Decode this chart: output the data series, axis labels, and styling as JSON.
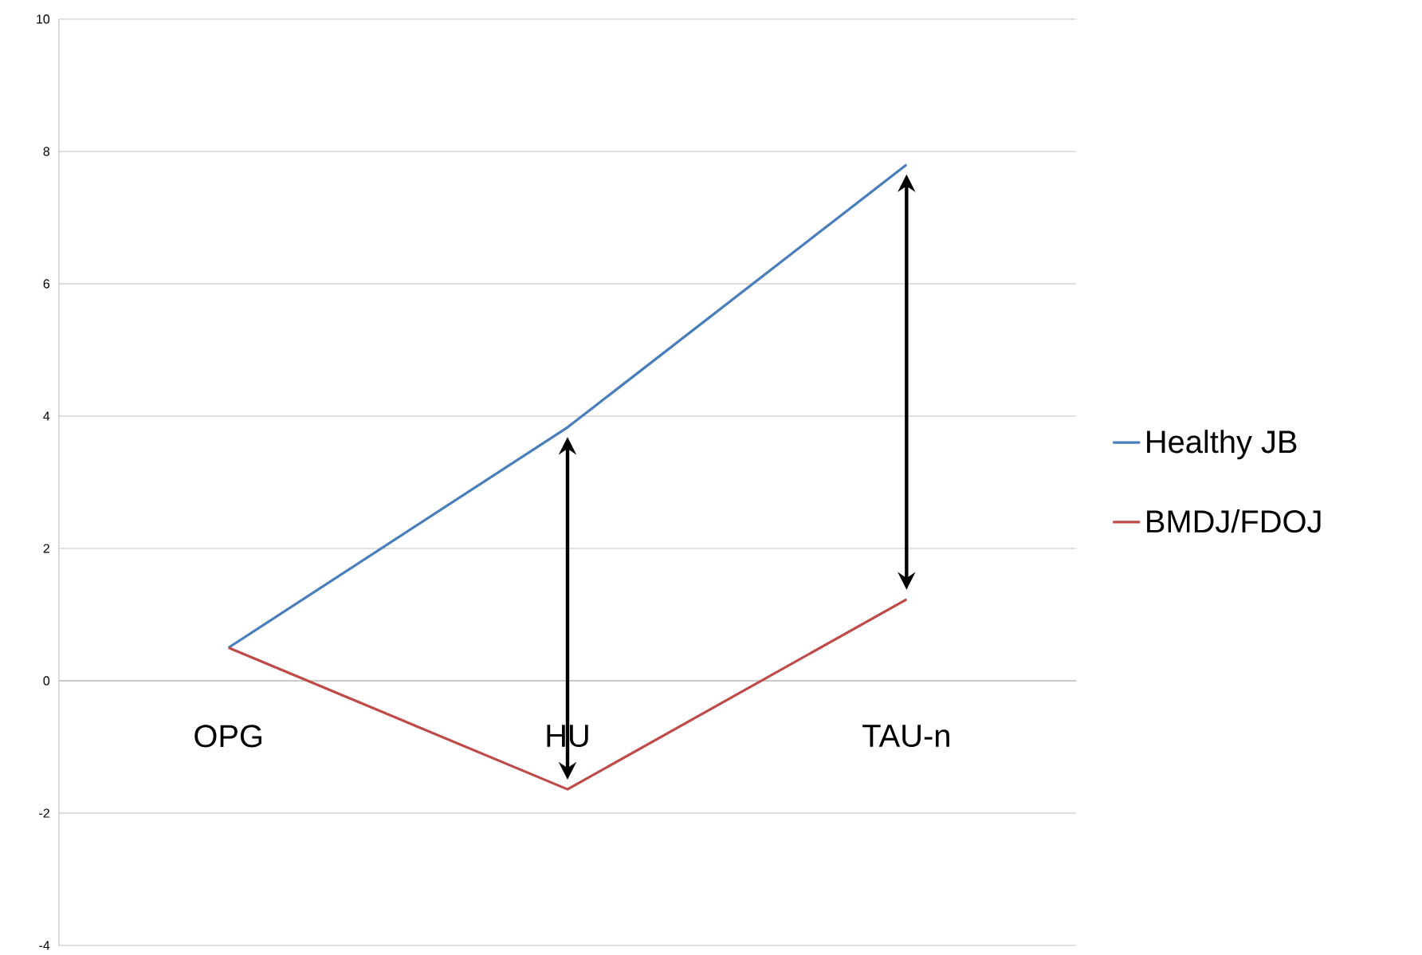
{
  "chart_data": {
    "type": "line",
    "categories": [
      "OPG",
      "HU",
      "TAU-n"
    ],
    "series": [
      {
        "name": "Healthy JB",
        "color": "#4a7ebb",
        "values": [
          0.5,
          3.83,
          7.8
        ]
      },
      {
        "name": "BMDJ/FDOJ",
        "color": "#be4b48",
        "values": [
          0.5,
          -1.64,
          1.23
        ]
      }
    ],
    "ylim": [
      -4,
      10
    ],
    "yticks": [
      -4,
      -2,
      0,
      2,
      4,
      6,
      8,
      10
    ],
    "grid": "y",
    "legend": "right",
    "marker": "none",
    "line_style": "solid"
  }
}
